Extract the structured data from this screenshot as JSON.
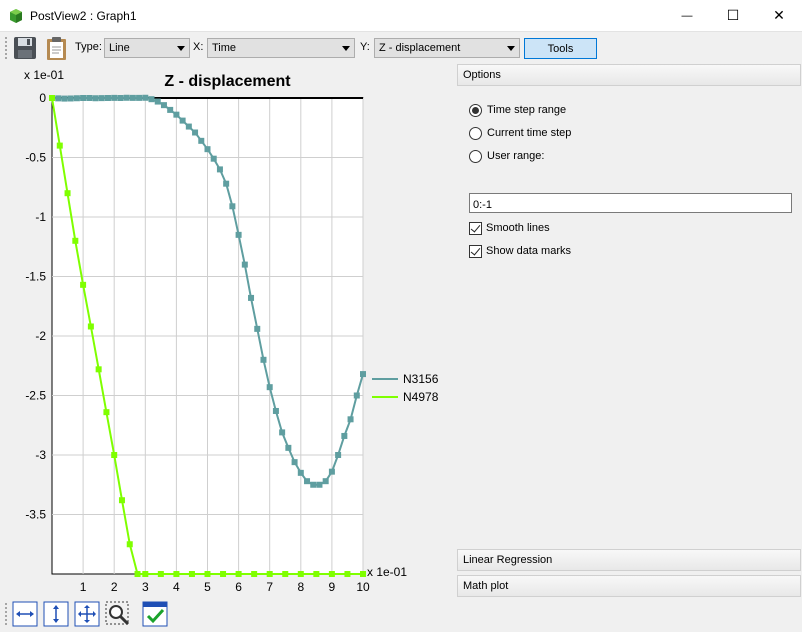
{
  "window": {
    "title": "PostView2 : Graph1",
    "minimize_glyph": "—",
    "maximize_glyph": "☐",
    "close_glyph": "✕"
  },
  "toolbar": {
    "save_icon": "save-icon",
    "clipboard_icon": "clipboard-icon",
    "type_label": "Type:",
    "type_value": "Line",
    "x_label": "X:",
    "x_value": "Time",
    "y_label": "Y:",
    "y_value": "Z - displacement",
    "tools_label": "Tools"
  },
  "side_panel": {
    "options_header": "Options",
    "radio_time_step_range": "Time step range",
    "radio_current_time_step": "Current time step",
    "radio_user_range": "User range:",
    "selected_radio": "Time step range",
    "user_range_value": "0:-1",
    "smooth_lines_label": "Smooth lines",
    "smooth_lines_checked": true,
    "show_data_marks_label": "Show data marks",
    "show_data_marks_checked": true,
    "linear_regression_header": "Linear Regression",
    "math_plot_header": "Math plot"
  },
  "bottom_toolbar": {
    "icons": [
      "fit-horizontal-icon",
      "fit-vertical-icon",
      "fit-all-icon",
      "zoom-select-icon",
      "data-check-icon"
    ]
  },
  "chart_data": {
    "type": "line",
    "title": "Z - displacement",
    "y_scale_label": "x 1e-01",
    "x_scale_label": "x 1e-01",
    "xlim": [
      0,
      10
    ],
    "ylim": [
      -4,
      0
    ],
    "x_ticks": [
      "1",
      "2",
      "3",
      "4",
      "5",
      "6",
      "7",
      "8",
      "9",
      "10"
    ],
    "y_ticks": [
      "0",
      "-0.5",
      "-1",
      "-1.5",
      "-2",
      "-2.5",
      "-3",
      "-3.5"
    ],
    "grid": true,
    "legend_position": "right",
    "series": [
      {
        "name": "N3156",
        "color": "#5f9ea0",
        "x": [
          0,
          0.2,
          0.4,
          0.6,
          0.8,
          1.0,
          1.2,
          1.4,
          1.6,
          1.8,
          2.0,
          2.2,
          2.4,
          2.6,
          2.8,
          3.0,
          3.2,
          3.4,
          3.6,
          3.8,
          4.0,
          4.2,
          4.4,
          4.6,
          4.8,
          5.0,
          5.2,
          5.4,
          5.6,
          5.8,
          6.0,
          6.2,
          6.4,
          6.6,
          6.8,
          7.0,
          7.2,
          7.4,
          7.6,
          7.8,
          8.0,
          8.2,
          8.4,
          8.6,
          8.8,
          9.0,
          9.2,
          9.4,
          9.6,
          9.8,
          10.0
        ],
        "y": [
          0.0,
          -0.003,
          -0.005,
          -0.004,
          -0.002,
          0.0,
          0.0,
          -0.002,
          -0.001,
          0.0,
          0.001,
          0.0,
          0.002,
          0.001,
          0.001,
          0.002,
          -0.01,
          -0.03,
          -0.06,
          -0.1,
          -0.14,
          -0.19,
          -0.24,
          -0.29,
          -0.36,
          -0.43,
          -0.51,
          -0.6,
          -0.72,
          -0.91,
          -1.15,
          -1.4,
          -1.68,
          -1.94,
          -2.2,
          -2.43,
          -2.63,
          -2.81,
          -2.94,
          -3.06,
          -3.15,
          -3.22,
          -3.25,
          -3.25,
          -3.22,
          -3.14,
          -3.0,
          -2.84,
          -2.7,
          -2.5,
          -2.32
        ]
      },
      {
        "name": "N4978",
        "color": "#7fff00",
        "x": [
          0,
          0.25,
          0.5,
          0.75,
          1.0,
          1.25,
          1.5,
          1.75,
          2.0,
          2.25,
          2.5,
          2.75,
          3.0,
          3.5,
          4.0,
          4.5,
          5.0,
          5.5,
          6.0,
          6.5,
          7.0,
          7.5,
          8.0,
          8.5,
          9.0,
          9.5,
          10.0
        ],
        "y": [
          0.0,
          -0.4,
          -0.8,
          -1.2,
          -1.57,
          -1.92,
          -2.28,
          -2.64,
          -3.0,
          -3.38,
          -3.75,
          -4.0,
          -4.0,
          -4.0,
          -4.0,
          -4.0,
          -4.0,
          -4.0,
          -4.0,
          -4.0,
          -4.0,
          -4.0,
          -4.0,
          -4.0,
          -4.0,
          -4.0,
          -4.0
        ]
      }
    ]
  }
}
